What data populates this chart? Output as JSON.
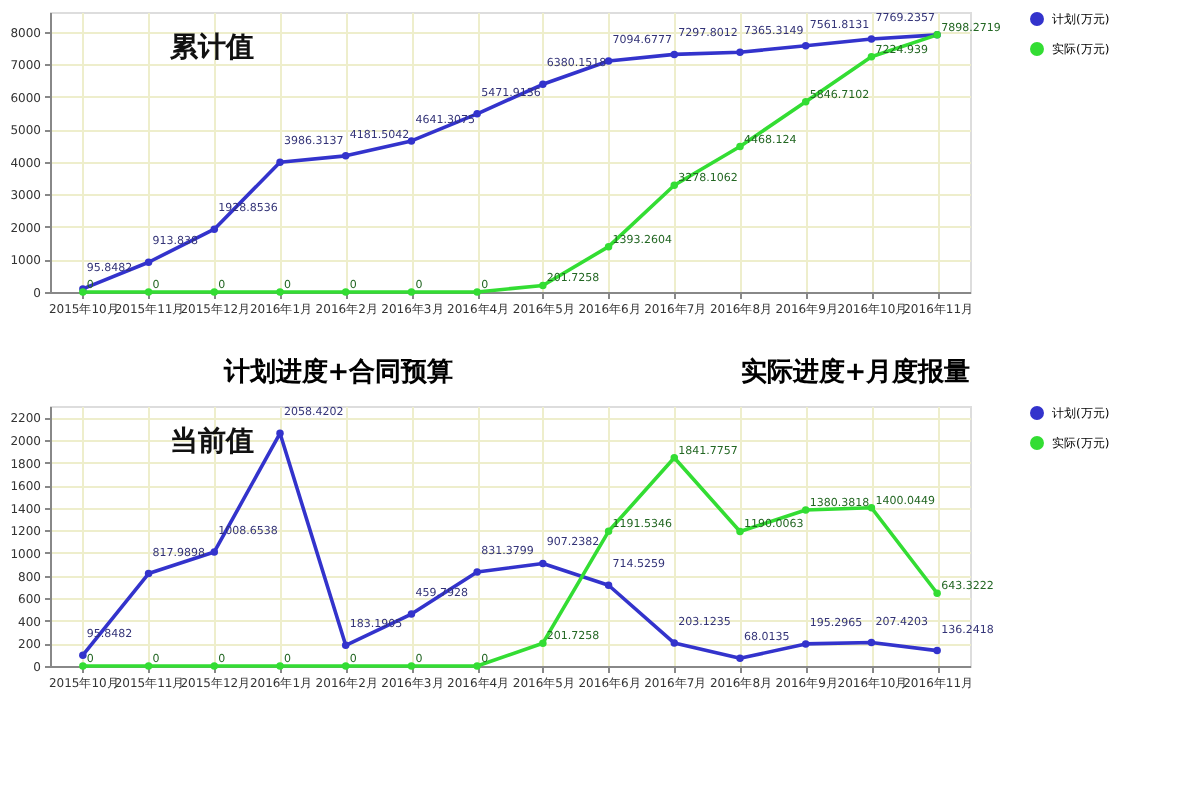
{
  "chart_data": [
    {
      "type": "line",
      "title": "累计值",
      "categories": [
        "2015年10月",
        "2015年11月",
        "2015年12月",
        "2016年1月",
        "2016年2月",
        "2016年3月",
        "2016年4月",
        "2016年5月",
        "2016年6月",
        "2016年7月",
        "2016年8月",
        "2016年9月",
        "2016年10月",
        "2016年11月"
      ],
      "series": [
        {
          "name": "计划(万元)",
          "color": "#3333cc",
          "values": [
            95.8482,
            913.838,
            1928.8536,
            3986.3137,
            4181.5042,
            4641.3075,
            5471.9136,
            6380.1518,
            7094.6777,
            7297.8012,
            7365.3149,
            7561.8131,
            7769.2357,
            7898.2719
          ],
          "value_labels": [
            "95.8482",
            "913.838",
            "1928.8536",
            "3986.3137",
            "4181.5042",
            "4641.3075",
            "5471.9136",
            "6380.1518",
            "7094.6777",
            "7297.8012",
            "7365.3149",
            "7561.8131",
            "7769.2357",
            null
          ]
        },
        {
          "name": "实际(万元)",
          "color": "#33dd33",
          "values": [
            0,
            0,
            0,
            0,
            0,
            0,
            0,
            201.7258,
            1393.2604,
            3278.1062,
            4468.124,
            5846.7102,
            7224.939,
            7898.2719
          ],
          "value_labels": [
            "0",
            "0",
            "0",
            "0",
            "0",
            "0",
            "0",
            "201.7258",
            "1393.2604",
            "3278.1062",
            "4468.124",
            "5846.7102",
            "7224.939",
            "7898.2719"
          ]
        }
      ],
      "ylim": [
        0,
        8600
      ],
      "yticks": [
        0,
        1000,
        2000,
        3000,
        4000,
        5000,
        6000,
        7000,
        8000
      ],
      "grid": true,
      "legend": "top right",
      "marker": "circle"
    },
    {
      "type": "line",
      "title": "当前值",
      "annotations": [
        "计划进度+合同预算",
        "实际进度+月度报量"
      ],
      "categories": [
        "2015年10月",
        "2015年11月",
        "2015年12月",
        "2016年1月",
        "2016年2月",
        "2016年3月",
        "2016年4月",
        "2016年5月",
        "2016年6月",
        "2016年7月",
        "2016年8月",
        "2016年9月",
        "2016年10月",
        "2016年11月"
      ],
      "series": [
        {
          "name": "计划(万元)",
          "color": "#3333cc",
          "values": [
            95.8482,
            817.9898,
            1008.6538,
            2058.4202,
            183.1905,
            459.7928,
            831.3799,
            907.2382,
            714.5259,
            203.1235,
            68.0135,
            195.2965,
            207.4203,
            136.2418
          ],
          "value_labels": [
            "95.8482",
            "817.9898",
            "1008.6538",
            "2058.4202",
            "183.1905",
            "459.7928",
            "831.3799",
            "907.2382",
            "714.5259",
            "203.1235",
            "68.0135",
            "195.2965",
            "207.4203",
            "136.2418"
          ]
        },
        {
          "name": "实际(万元)",
          "color": "#33dd33",
          "values": [
            0,
            0,
            0,
            0,
            0,
            0,
            0,
            201.7258,
            1191.5346,
            1841.7757,
            1190.0063,
            1380.3818,
            1400.0449,
            643.3222
          ],
          "value_labels": [
            "0",
            "0",
            "0",
            "0",
            "0",
            "0",
            "0",
            "201.7258",
            "1191.5346",
            "1841.7757",
            "1190.0063",
            "1380.3818",
            "1400.0449",
            "643.3222"
          ]
        }
      ],
      "ylim": [
        0,
        2300
      ],
      "yticks": [
        0,
        200,
        400,
        600,
        800,
        1000,
        1200,
        1400,
        1600,
        1800,
        2000,
        2200
      ],
      "grid": true,
      "legend": "top right",
      "marker": "circle"
    }
  ]
}
